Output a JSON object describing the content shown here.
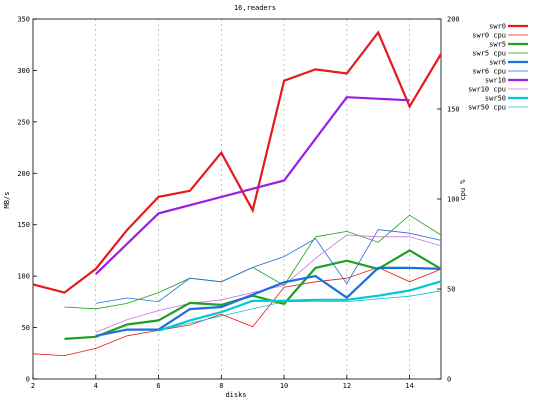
{
  "chart_data": {
    "type": "line",
    "title": "16,readers",
    "xlabel": "disks",
    "ylabel": "MB/s",
    "y2label": "cpu %",
    "xlim": [
      2,
      15
    ],
    "ylim": [
      0,
      350
    ],
    "y2lim": [
      0,
      200
    ],
    "xticks": [
      2,
      4,
      6,
      8,
      10,
      12,
      14
    ],
    "yticks": [
      0,
      50,
      100,
      150,
      200,
      250,
      300,
      350
    ],
    "y2ticks": [
      0,
      50,
      100,
      150,
      200
    ],
    "grid": "vertical dashed",
    "legend_position": "top-right",
    "series": [
      {
        "name": "swr0",
        "axis": "y",
        "color": "#e41a1c",
        "width": 2.2,
        "x": [
          2,
          3,
          4,
          5,
          6,
          7,
          8,
          9,
          10,
          11,
          12,
          13,
          14,
          15
        ],
        "values": [
          92,
          84,
          107,
          145,
          177,
          183,
          220,
          164,
          290,
          301,
          297,
          337,
          265,
          316
        ]
      },
      {
        "name": "swr0 cpu",
        "axis": "y2",
        "color": "#e41a1c",
        "width": 0.8,
        "x": [
          2,
          3,
          4,
          5,
          6,
          7,
          8,
          9,
          10,
          11,
          12,
          13,
          14,
          15
        ],
        "values": [
          14,
          13,
          17,
          24,
          27,
          30,
          36,
          29,
          51,
          54,
          56,
          62,
          54,
          61
        ]
      },
      {
        "name": "swr5",
        "axis": "y",
        "color": "#1fa01f",
        "width": 2.2,
        "x": [
          3,
          4,
          5,
          6,
          7,
          8,
          9,
          10,
          11,
          12,
          13,
          14,
          15
        ],
        "values": [
          39,
          41,
          53,
          57,
          74,
          72,
          81,
          73,
          108,
          115,
          107,
          125,
          107
        ]
      },
      {
        "name": "swr5 cpu",
        "axis": "y2",
        "color": "#1fa01f",
        "width": 0.8,
        "x": [
          3,
          4,
          5,
          6,
          7,
          8,
          9,
          10,
          11,
          12,
          13,
          14,
          15
        ],
        "values": [
          40,
          39,
          42,
          48,
          56,
          54,
          62,
          52,
          79,
          82,
          76,
          91,
          80
        ]
      },
      {
        "name": "swr6",
        "axis": "y",
        "color": "#1e6fe0",
        "width": 2.2,
        "x": [
          4,
          5,
          6,
          7,
          8,
          9,
          10,
          11,
          12,
          13,
          14,
          15
        ],
        "values": [
          42,
          48,
          48,
          68,
          70,
          82,
          94,
          100,
          79,
          108,
          108,
          107
        ]
      },
      {
        "name": "swr6 cpu",
        "axis": "y2",
        "color": "#1e6fe0",
        "width": 0.8,
        "x": [
          4,
          5,
          6,
          7,
          8,
          9,
          10,
          11,
          12,
          13,
          14,
          15
        ],
        "values": [
          42,
          45,
          43,
          56,
          54,
          62,
          68,
          78,
          53,
          83,
          81,
          77
        ]
      },
      {
        "name": "swr10",
        "axis": "y",
        "color": "#9a1fe0",
        "width": 2.2,
        "x": [
          4,
          6,
          10,
          12,
          14
        ],
        "values": [
          102,
          161,
          193,
          274,
          271
        ]
      },
      {
        "name": "swr10 cpu",
        "axis": "y2",
        "color": "#d070e0",
        "width": 0.8,
        "x": [
          4,
          5,
          6,
          7,
          8,
          9,
          10,
          11,
          12,
          13,
          14,
          15
        ],
        "values": [
          26,
          33,
          38,
          42,
          44,
          48,
          52,
          67,
          80,
          79,
          79,
          74
        ]
      },
      {
        "name": "swr50",
        "axis": "y",
        "color": "#00c8d8",
        "width": 2.2,
        "x": [
          6,
          7,
          8,
          9,
          10,
          11,
          12,
          13,
          14,
          15
        ],
        "values": [
          47,
          57,
          65,
          76,
          76,
          77,
          77,
          81,
          86,
          95
        ]
      },
      {
        "name": "swr50 cpu",
        "axis": "y2",
        "color": "#00c8d8",
        "width": 0.8,
        "x": [
          6,
          8,
          10,
          12,
          14,
          15
        ],
        "values": [
          27,
          35,
          43,
          43,
          46,
          49
        ]
      }
    ]
  }
}
